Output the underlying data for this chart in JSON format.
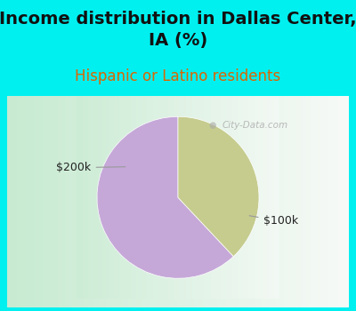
{
  "title": "Income distribution in Dallas Center,\nIA (%)",
  "subtitle": "Hispanic or Latino residents",
  "slices": [
    62,
    38
  ],
  "labels": [
    "$100k",
    "$200k"
  ],
  "colors": [
    "#c5a8d8",
    "#c5cc8e"
  ],
  "background_color": "#00f0f0",
  "chart_bg_left": "#b8ddc8",
  "chart_bg_right": "#f0f0f0",
  "title_fontsize": 14,
  "subtitle_fontsize": 12,
  "title_color": "#111111",
  "subtitle_color": "#dd6600",
  "startangle": 90,
  "label_color": "#222222",
  "watermark": "City-Data.com",
  "label_fontsize": 9
}
